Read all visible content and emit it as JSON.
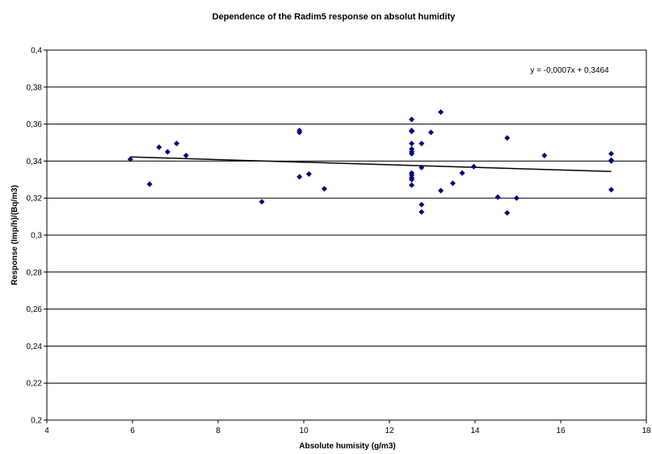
{
  "chart_data": {
    "type": "scatter",
    "title": "Dependence of the Radim5  response on absolut humidity",
    "xlabel": "Absolute humisity (g/m3)",
    "ylabel": "Response (Imp/h)/(Bq/m3)",
    "xlim": [
      4,
      18
    ],
    "ylim": [
      0.2,
      0.4
    ],
    "xticks": [
      4,
      6,
      8,
      10,
      12,
      14,
      16,
      18
    ],
    "xtick_labels": [
      "4",
      "6",
      "8",
      "10",
      "12",
      "14",
      "16",
      "18"
    ],
    "yticks": [
      0.2,
      0.22,
      0.24,
      0.26,
      0.28,
      0.3,
      0.32,
      0.34,
      0.36,
      0.38,
      0.4
    ],
    "ytick_labels": [
      "0,2",
      "0,22",
      "0,24",
      "0,26",
      "0,28",
      "0,3",
      "0,32",
      "0,34",
      "0,36",
      "0,38",
      "0,4"
    ],
    "grid": "horizontal",
    "marker_color": "#000080",
    "points": [
      [
        5.95,
        0.341
      ],
      [
        6.4,
        0.3275
      ],
      [
        6.62,
        0.3475
      ],
      [
        6.82,
        0.345
      ],
      [
        7.03,
        0.3495
      ],
      [
        7.25,
        0.343
      ],
      [
        9.02,
        0.318
      ],
      [
        9.9,
        0.3565
      ],
      [
        9.9,
        0.3555
      ],
      [
        9.9,
        0.3315
      ],
      [
        10.12,
        0.333
      ],
      [
        10.48,
        0.325
      ],
      [
        12.52,
        0.3625
      ],
      [
        12.52,
        0.3565
      ],
      [
        12.52,
        0.356
      ],
      [
        12.52,
        0.3495
      ],
      [
        12.52,
        0.3465
      ],
      [
        12.52,
        0.345
      ],
      [
        12.52,
        0.344
      ],
      [
        12.52,
        0.3335
      ],
      [
        12.52,
        0.3325
      ],
      [
        12.52,
        0.331
      ],
      [
        12.52,
        0.33
      ],
      [
        12.52,
        0.327
      ],
      [
        12.75,
        0.3495
      ],
      [
        12.75,
        0.3365
      ],
      [
        12.75,
        0.3165
      ],
      [
        12.75,
        0.3125
      ],
      [
        12.97,
        0.3555
      ],
      [
        13.2,
        0.3665
      ],
      [
        13.2,
        0.324
      ],
      [
        13.48,
        0.328
      ],
      [
        13.7,
        0.3335
      ],
      [
        13.97,
        0.337
      ],
      [
        14.53,
        0.3205
      ],
      [
        14.75,
        0.3525
      ],
      [
        14.75,
        0.312
      ],
      [
        14.97,
        0.32
      ],
      [
        15.62,
        0.343
      ],
      [
        17.18,
        0.344
      ],
      [
        17.18,
        0.3405
      ],
      [
        17.18,
        0.34
      ],
      [
        17.18,
        0.3245
      ]
    ],
    "trendline": {
      "slope": -0.0007,
      "intercept": 0.3464,
      "x_range": [
        5.95,
        17.18
      ],
      "equation_label": "y = -0,0007x + 0,3464"
    }
  }
}
